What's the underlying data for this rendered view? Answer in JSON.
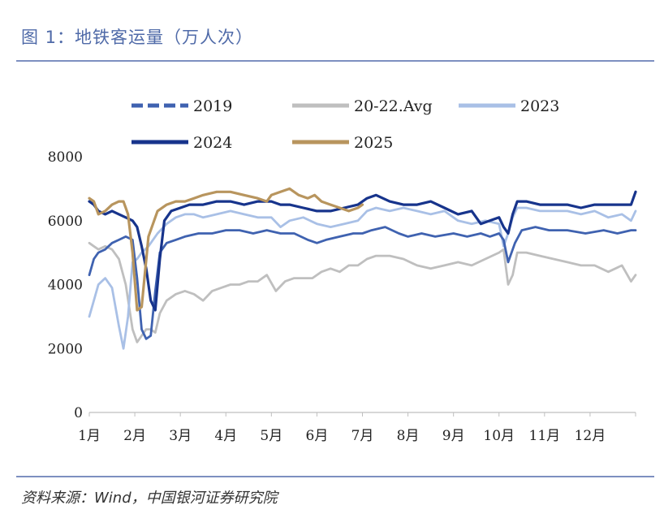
{
  "figure": {
    "title": "图 1：地铁客运量（万人次）",
    "source": "资料来源：Wind，中国银河证券研究院"
  },
  "colors": {
    "2019": "#3f62b0",
    "20-22.Avg": "#bfbfbf",
    "2023": "#a9c0e6",
    "2024": "#17348c",
    "2025": "#b8955e",
    "rule": "#7d8fc0",
    "title": "#4f6aa8"
  },
  "chart_data": {
    "type": "line",
    "title": "地铁客运量（万人次）",
    "xlabel": "",
    "ylabel": "",
    "x_unit": "month",
    "xlim": [
      1,
      13
    ],
    "ylim": [
      0,
      8000
    ],
    "yticks": [
      "0",
      "2000",
      "4000",
      "6000",
      "8000"
    ],
    "xticks": [
      "1月",
      "2月",
      "3月",
      "4月",
      "5月",
      "6月",
      "7月",
      "8月",
      "9月",
      "10月",
      "11月",
      "12月"
    ],
    "legend_position": "top",
    "grid": false,
    "series": [
      {
        "name": "2019",
        "style": "dashed",
        "x": [
          1.0,
          1.1,
          1.2,
          1.35,
          1.5,
          1.65,
          1.8,
          1.95,
          2.05,
          2.15,
          2.25,
          2.35,
          2.45,
          2.55,
          2.7,
          2.9,
          3.1,
          3.4,
          3.7,
          4.0,
          4.3,
          4.6,
          4.9,
          5.2,
          5.5,
          5.8,
          6.0,
          6.2,
          6.5,
          6.8,
          7.0,
          7.2,
          7.5,
          7.8,
          8.0,
          8.3,
          8.6,
          9.0,
          9.3,
          9.6,
          9.8,
          10.0,
          10.1,
          10.2,
          10.35,
          10.5,
          10.8,
          11.1,
          11.5,
          11.9,
          12.3,
          12.6,
          12.9,
          13.0
        ],
        "values": [
          4300,
          4800,
          5000,
          5100,
          5300,
          5400,
          5500,
          5400,
          4200,
          2600,
          2300,
          2400,
          3800,
          5000,
          5300,
          5400,
          5500,
          5600,
          5600,
          5700,
          5700,
          5600,
          5700,
          5600,
          5600,
          5400,
          5300,
          5400,
          5500,
          5600,
          5600,
          5700,
          5800,
          5600,
          5500,
          5600,
          5500,
          5600,
          5500,
          5600,
          5500,
          5600,
          5400,
          4700,
          5300,
          5700,
          5800,
          5700,
          5700,
          5600,
          5700,
          5600,
          5700,
          5700
        ]
      },
      {
        "name": "20-22.Avg",
        "style": "solid",
        "x": [
          1.0,
          1.1,
          1.2,
          1.35,
          1.5,
          1.65,
          1.8,
          1.95,
          2.05,
          2.15,
          2.25,
          2.35,
          2.45,
          2.55,
          2.7,
          2.9,
          3.1,
          3.3,
          3.5,
          3.7,
          3.9,
          4.1,
          4.3,
          4.5,
          4.7,
          4.9,
          5.1,
          5.3,
          5.5,
          5.7,
          5.9,
          6.1,
          6.3,
          6.5,
          6.7,
          6.9,
          7.1,
          7.3,
          7.6,
          7.9,
          8.2,
          8.5,
          8.8,
          9.1,
          9.4,
          9.7,
          10.0,
          10.1,
          10.2,
          10.3,
          10.4,
          10.6,
          10.9,
          11.2,
          11.5,
          11.8,
          12.1,
          12.4,
          12.7,
          12.9,
          13.0
        ],
        "values": [
          5300,
          5200,
          5100,
          5200,
          5100,
          4800,
          4000,
          2600,
          2200,
          2400,
          2600,
          2600,
          2500,
          3100,
          3500,
          3700,
          3800,
          3700,
          3500,
          3800,
          3900,
          4000,
          4000,
          4100,
          4100,
          4300,
          3800,
          4100,
          4200,
          4200,
          4200,
          4400,
          4500,
          4400,
          4600,
          4600,
          4800,
          4900,
          4900,
          4800,
          4600,
          4500,
          4600,
          4700,
          4600,
          4800,
          5000,
          5100,
          4000,
          4300,
          5000,
          5000,
          4900,
          4800,
          4700,
          4600,
          4600,
          4400,
          4600,
          4100,
          4300
        ]
      },
      {
        "name": "2023",
        "style": "solid",
        "x": [
          1.0,
          1.1,
          1.2,
          1.35,
          1.5,
          1.65,
          1.75,
          1.85,
          1.95,
          2.05,
          2.15,
          2.3,
          2.5,
          2.7,
          2.9,
          3.1,
          3.3,
          3.5,
          3.8,
          4.1,
          4.4,
          4.7,
          5.0,
          5.2,
          5.4,
          5.7,
          6.0,
          6.3,
          6.6,
          6.9,
          7.1,
          7.3,
          7.6,
          7.9,
          8.2,
          8.5,
          8.8,
          9.1,
          9.4,
          9.7,
          10.0,
          10.1,
          10.2,
          10.3,
          10.4,
          10.6,
          10.9,
          11.2,
          11.5,
          11.8,
          12.1,
          12.4,
          12.7,
          12.9,
          13.0
        ],
        "values": [
          3000,
          3500,
          4000,
          4200,
          3900,
          2700,
          2000,
          3000,
          4700,
          4800,
          5000,
          5200,
          5600,
          5900,
          6100,
          6200,
          6200,
          6100,
          6200,
          6300,
          6200,
          6100,
          6100,
          5800,
          6000,
          6100,
          5900,
          5800,
          5900,
          6000,
          6300,
          6400,
          6300,
          6400,
          6300,
          6200,
          6300,
          6000,
          5900,
          6000,
          5900,
          5200,
          5600,
          6100,
          6400,
          6400,
          6300,
          6300,
          6300,
          6200,
          6300,
          6100,
          6200,
          6000,
          6300
        ]
      },
      {
        "name": "2024",
        "style": "solid",
        "x": [
          1.0,
          1.1,
          1.2,
          1.35,
          1.5,
          1.65,
          1.8,
          1.95,
          2.05,
          2.15,
          2.25,
          2.35,
          2.45,
          2.55,
          2.65,
          2.8,
          3.0,
          3.2,
          3.5,
          3.8,
          4.1,
          4.4,
          4.7,
          5.0,
          5.2,
          5.4,
          5.7,
          6.0,
          6.3,
          6.6,
          6.9,
          7.1,
          7.3,
          7.6,
          7.9,
          8.2,
          8.5,
          8.8,
          9.1,
          9.4,
          9.6,
          9.8,
          10.0,
          10.1,
          10.2,
          10.3,
          10.4,
          10.6,
          10.9,
          11.2,
          11.5,
          11.8,
          12.1,
          12.4,
          12.7,
          12.9,
          13.0
        ],
        "values": [
          6600,
          6500,
          6300,
          6200,
          6300,
          6200,
          6100,
          6000,
          5800,
          5200,
          4500,
          3500,
          3200,
          4800,
          6000,
          6300,
          6400,
          6500,
          6500,
          6600,
          6600,
          6500,
          6600,
          6600,
          6500,
          6500,
          6400,
          6300,
          6300,
          6400,
          6500,
          6700,
          6800,
          6600,
          6500,
          6500,
          6600,
          6400,
          6200,
          6300,
          5900,
          6000,
          6100,
          5800,
          5600,
          6200,
          6600,
          6600,
          6500,
          6500,
          6500,
          6400,
          6500,
          6500,
          6500,
          6500,
          6900
        ]
      },
      {
        "name": "2025",
        "style": "solid",
        "x": [
          1.0,
          1.1,
          1.2,
          1.35,
          1.5,
          1.65,
          1.75,
          1.85,
          1.95,
          2.05,
          2.15,
          2.3,
          2.5,
          2.7,
          2.9,
          3.1,
          3.3,
          3.5,
          3.8,
          4.1,
          4.4,
          4.7,
          4.9,
          5.0,
          5.2,
          5.4,
          5.6,
          5.8,
          5.95,
          6.1,
          6.3,
          6.5,
          6.7,
          6.9,
          7.0
        ],
        "values": [
          6700,
          6600,
          6200,
          6300,
          6500,
          6600,
          6600,
          6200,
          5000,
          3200,
          3300,
          5500,
          6300,
          6500,
          6600,
          6600,
          6700,
          6800,
          6900,
          6900,
          6800,
          6700,
          6600,
          6800,
          6900,
          7000,
          6800,
          6700,
          6800,
          6600,
          6500,
          6400,
          6300,
          6400,
          6500
        ]
      }
    ]
  }
}
